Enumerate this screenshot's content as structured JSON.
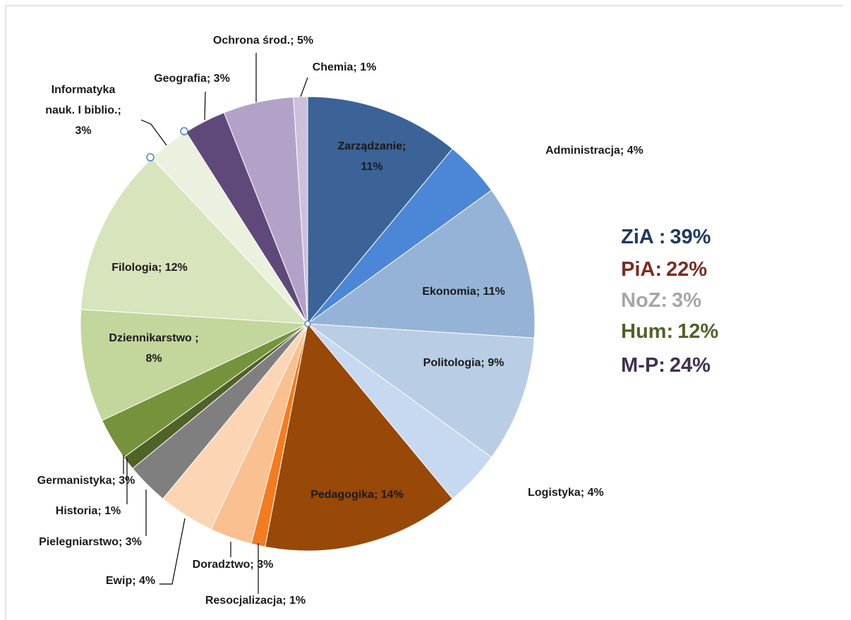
{
  "chart_data": {
    "type": "pie",
    "values": [
      11,
      4,
      11,
      9,
      4,
      14,
      1,
      3,
      4,
      3,
      1,
      3,
      8,
      12,
      3,
      3,
      5,
      1
    ],
    "value_labels": [
      [
        "Zarządzanie;",
        "11%"
      ],
      [
        "Administracja; 4%"
      ],
      [
        "Ekonomia; 11%"
      ],
      [
        "Politologia; 9%"
      ],
      [
        "Logistyka; 4%"
      ],
      [
        "Pedagogika; 14%"
      ],
      [
        "Resocjalizacja;  1%"
      ],
      [
        "Doradztwo; 3%"
      ],
      [
        "Ewip; 4%"
      ],
      [
        "Pielegniarstwo; 3%"
      ],
      [
        "Historia; 1%"
      ],
      [
        "Germanistyka; 3%"
      ],
      [
        "Dziennikarstwo ;",
        "8%"
      ],
      [
        "Filologia; 12%"
      ],
      [
        "Informatyka",
        "nauk. I biblio.;",
        "3%"
      ],
      [
        "Geografia; 3%"
      ],
      [
        "Ochrona środ.; 5%"
      ],
      [
        "Chemia; 1%"
      ]
    ],
    "colors": [
      "#3b6397",
      "#4b87d6",
      "#95b3d7",
      "#b9cde5",
      "#c6d9f1",
      "#984807",
      "#f47c20",
      "#fac090",
      "#fcd5b5",
      "#7f7f7f",
      "#4f6228",
      "#76933c",
      "#c3d69b",
      "#d7e4bc",
      "#ebf1de",
      "#5f497a",
      "#b3a2c7",
      "#ccc0da"
    ],
    "groups": {
      "names": [
        "ZiA :",
        "PiA:",
        "NoZ:",
        "Hum:",
        "M-P:"
      ],
      "values": [
        39,
        22,
        3,
        12,
        24
      ],
      "value_labels": [
        "39%",
        "22%",
        "3%",
        "12%",
        "24%"
      ],
      "colors": [
        "#1f3864",
        "#7b2c22",
        "#a6a6a6",
        "#4f6228",
        "#403152"
      ]
    }
  }
}
